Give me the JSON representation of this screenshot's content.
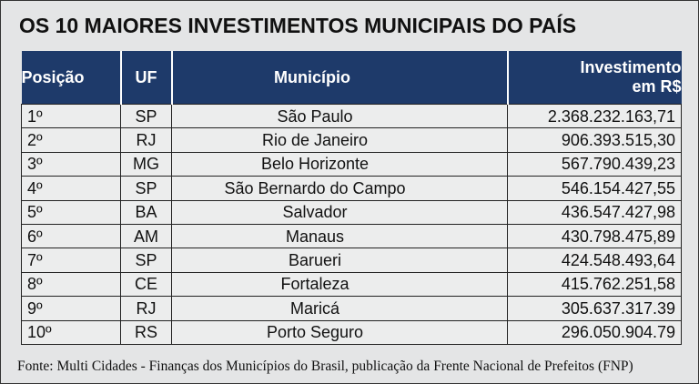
{
  "title": "OS 10 MAIORES INVESTIMENTOS MUNICIPAIS DO PAÍS",
  "table": {
    "headers": [
      "Posição",
      "UF",
      "Município",
      "Investimento em R$"
    ],
    "rows": [
      [
        "1º",
        "SP",
        "São Paulo",
        "2.368.232.163,71"
      ],
      [
        "2º",
        "RJ",
        "Rio de Janeiro",
        "906.393.515,30"
      ],
      [
        "3º",
        "MG",
        "Belo Horizonte",
        "567.790.439,23"
      ],
      [
        "4º",
        "SP",
        "São Bernardo do Campo",
        "546.154.427,55"
      ],
      [
        "5º",
        "BA",
        "Salvador",
        "436.547.427,98"
      ],
      [
        "6º",
        "AM",
        "Manaus",
        "430.798.475,89"
      ],
      [
        "7º",
        "SP",
        "Barueri",
        "424.548.493,64"
      ],
      [
        "8º",
        "CE",
        "Fortaleza",
        "415.762.251,58"
      ],
      [
        "9º",
        "RJ",
        "Maricá",
        "305.637.317.39"
      ],
      [
        "10º",
        "RS",
        "Porto Seguro",
        "296.050.904.79"
      ]
    ]
  },
  "source": "Fonte: Multi Cidades - Finanças dos Municípios do Brasil, publicação da Frente Nacional de Prefeitos (FNP)"
}
